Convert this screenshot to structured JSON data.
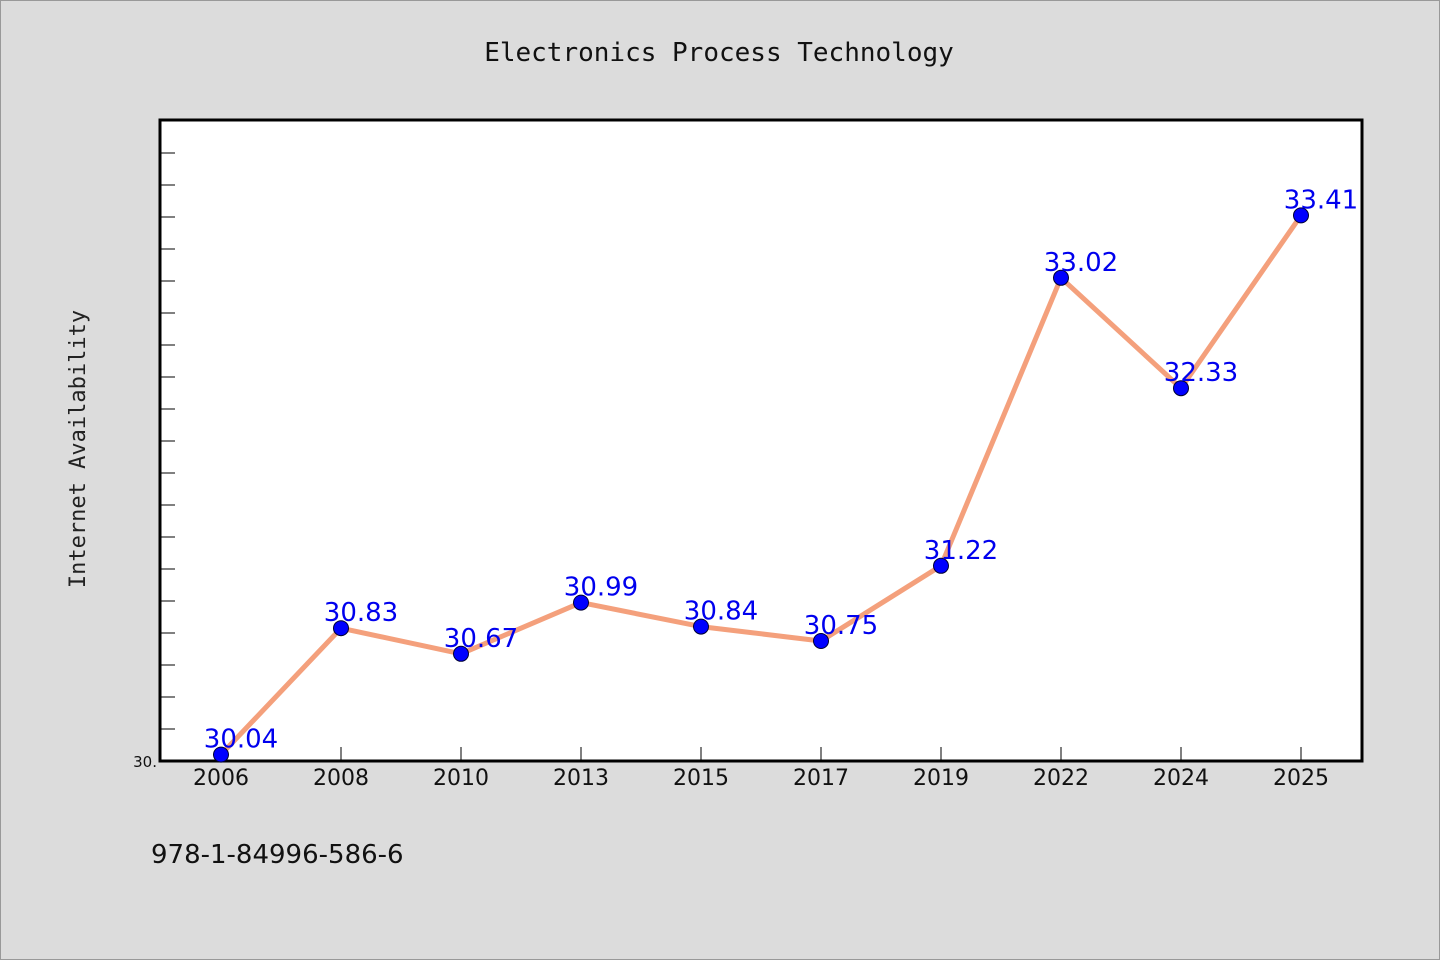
{
  "chart_data": {
    "type": "line",
    "title": "Electronics Process Technology",
    "xlabel": "",
    "ylabel": "Internet Availability",
    "categories": [
      "2006",
      "2008",
      "2010",
      "2013",
      "2015",
      "2017",
      "2019",
      "2022",
      "2024",
      "2025"
    ],
    "values": [
      30.04,
      30.83,
      30.67,
      30.99,
      30.84,
      30.75,
      31.22,
      33.02,
      32.33,
      33.41
    ],
    "data_labels": [
      "30.04",
      "30.83",
      "30.67",
      "30.99",
      "30.84",
      "30.75",
      "31.22",
      "33.02",
      "32.33",
      "33.41"
    ],
    "ylim": [
      30.0,
      34.0
    ],
    "ytick_labels": [
      "30."
    ],
    "grid": false,
    "line_color": "#f4a07c",
    "marker_color": "#0000ff",
    "label_color": "#0000ee"
  },
  "footnote": "978-1-84996-586-6"
}
